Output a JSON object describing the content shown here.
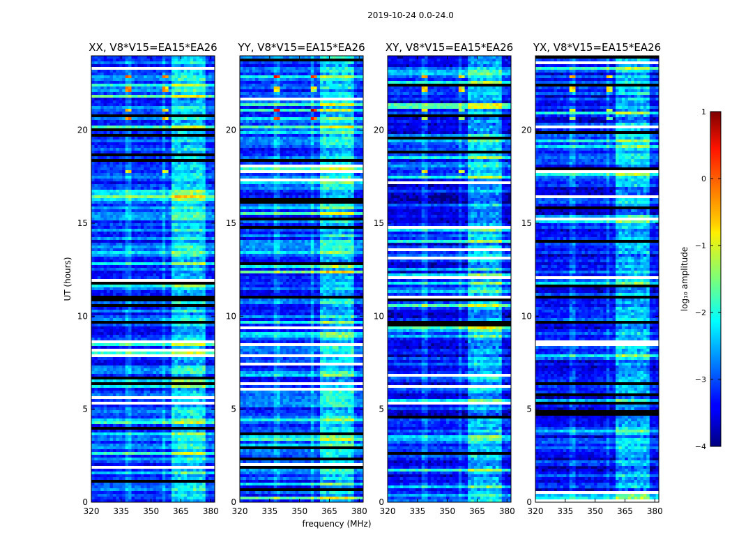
{
  "figure": {
    "suptitle": "2019-10-24 0.0-24.0",
    "xlabel": "frequency (MHz)",
    "ylabel": "UT (hours)"
  },
  "colorbar": {
    "label": "log₁₀ amplitude",
    "ticks": [
      1,
      0,
      -1,
      -2,
      -3,
      -4
    ],
    "tick_labels": [
      "1",
      "0",
      "−1",
      "−2",
      "−3",
      "−4"
    ],
    "range": [
      -4,
      1
    ],
    "colormap": "jet"
  },
  "chart_data": [
    {
      "type": "heatmap",
      "title": "XX, V8*V15=EA15*EA26",
      "xlabel": "",
      "ylabel": "UT (hours)",
      "xlim": [
        320,
        382
      ],
      "ylim": [
        0,
        24
      ],
      "xticks": [
        320,
        335,
        350,
        365,
        380
      ],
      "yticks": [
        0,
        5,
        10,
        15,
        20
      ],
      "value": "log10 amplitude",
      "features": {
        "rfi_line_frequencies_mhz": [
          338.5,
          356.5
        ],
        "rfi_band_mhz": [
          360,
          378
        ],
        "bright_times_ut": [
          17.8,
          20.6,
          21.1,
          22.2,
          22.9
        ]
      }
    },
    {
      "type": "heatmap",
      "title": "YY, V8*V15=EA15*EA26",
      "xlabel": "frequency (MHz)",
      "ylabel": "",
      "xlim": [
        320,
        382
      ],
      "ylim": [
        0,
        24
      ],
      "xticks": [
        320,
        335,
        350,
        365,
        380
      ],
      "yticks": [
        0,
        5,
        10,
        15,
        20
      ],
      "value": "log10 amplitude",
      "features": {
        "rfi_line_frequencies_mhz": [
          338.5,
          356.5
        ],
        "rfi_band_mhz": [
          360,
          378
        ],
        "bright_times_ut": [
          17.8,
          20.6,
          21.1,
          22.2,
          22.9
        ]
      }
    },
    {
      "type": "heatmap",
      "title": "XY, V8*V15=EA15*EA26",
      "xlabel": "",
      "ylabel": "",
      "xlim": [
        320,
        382
      ],
      "ylim": [
        0,
        24
      ],
      "xticks": [
        320,
        335,
        350,
        365,
        380
      ],
      "yticks": [
        0,
        5,
        10,
        15,
        20
      ],
      "value": "log10 amplitude",
      "features": {
        "rfi_line_frequencies_mhz": [
          338.5,
          356.5
        ],
        "rfi_band_mhz": [
          360,
          378
        ],
        "bright_times_ut": [
          17.8,
          20.6,
          21.1,
          22.2,
          22.9
        ]
      }
    },
    {
      "type": "heatmap",
      "title": "YX, V8*V15=EA15*EA26",
      "xlabel": "",
      "ylabel": "",
      "xlim": [
        320,
        382
      ],
      "ylim": [
        0,
        24
      ],
      "xticks": [
        320,
        335,
        350,
        365,
        380
      ],
      "yticks": [
        0,
        5,
        10,
        15,
        20
      ],
      "value": "log10 amplitude",
      "features": {
        "rfi_line_frequencies_mhz": [
          338.5,
          356.5
        ],
        "rfi_band_mhz": [
          360,
          378
        ],
        "bright_times_ut": [
          17.8,
          20.6,
          21.1,
          22.2,
          22.9
        ]
      }
    }
  ]
}
